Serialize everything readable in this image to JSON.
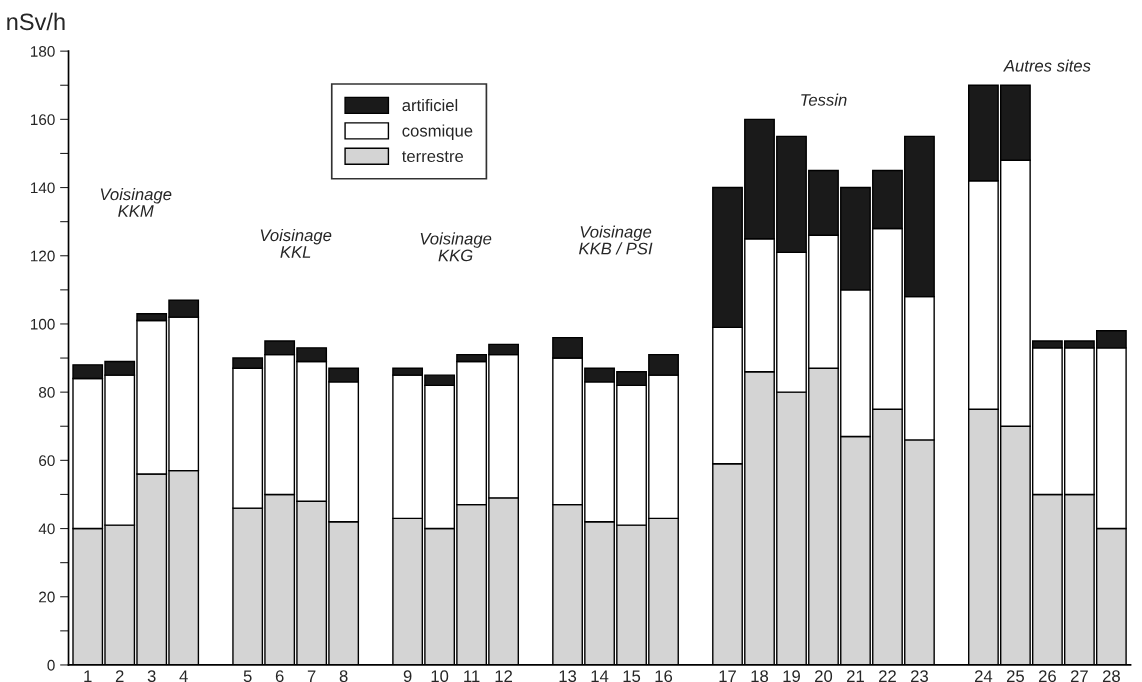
{
  "chart_data": {
    "type": "bar",
    "stacked": true,
    "ylabel": "nSv/h",
    "categories": [
      "1",
      "2",
      "3",
      "4",
      null,
      "5",
      "6",
      "7",
      "8",
      null,
      "9",
      "10",
      "11",
      "12",
      null,
      "13",
      "14",
      "15",
      "16",
      null,
      "17",
      "18",
      "19",
      "20",
      "21",
      "22",
      "23",
      null,
      "24",
      "25",
      "26",
      "27",
      "28"
    ],
    "series": [
      {
        "name": "terrestre",
        "color": "#d4d4d4",
        "values": [
          40,
          41,
          56,
          57,
          null,
          46,
          50,
          48,
          42,
          null,
          43,
          40,
          47,
          49,
          null,
          47,
          42,
          41,
          43,
          null,
          59,
          86,
          80,
          87,
          67,
          75,
          66,
          null,
          75,
          70,
          50,
          50,
          40
        ]
      },
      {
        "name": "cosmique",
        "color": "#ffffff",
        "values": [
          44,
          44,
          45,
          45,
          null,
          41,
          41,
          41,
          41,
          null,
          42,
          42,
          42,
          42,
          null,
          43,
          41,
          41,
          42,
          null,
          40,
          39,
          41,
          39,
          43,
          53,
          42,
          null,
          67,
          78,
          43,
          43,
          53
        ]
      },
      {
        "name": "artificiel",
        "color": "#1a1a1a",
        "values": [
          4,
          4,
          2,
          5,
          null,
          3,
          4,
          4,
          4,
          null,
          2,
          3,
          2,
          3,
          null,
          6,
          4,
          4,
          6,
          null,
          41,
          35,
          34,
          19,
          30,
          17,
          47,
          null,
          28,
          22,
          2,
          2,
          5
        ]
      }
    ],
    "annotations": [
      "Voisinage\nKKM",
      "Voisinage\nKKL",
      "Voisinage\nKKG",
      "Voisinage\nKKB / PSI",
      "Tessin",
      "Autres sites"
    ],
    "ylim": [
      0,
      180
    ],
    "yticks": [
      0,
      {
        "value": 10,
        "label": null
      },
      20,
      {
        "value": 30,
        "label": null
      },
      40,
      {
        "value": 50,
        "label": null
      },
      60,
      {
        "value": 70,
        "label": null
      },
      80,
      {
        "value": 90,
        "label": null
      },
      100,
      {
        "value": 110,
        "label": null
      },
      120,
      {
        "value": 130,
        "label": null
      },
      140,
      {
        "value": 150,
        "label": null
      },
      160,
      {
        "value": 170,
        "label": null
      },
      180
    ],
    "legend": "top left",
    "grid": false
  }
}
